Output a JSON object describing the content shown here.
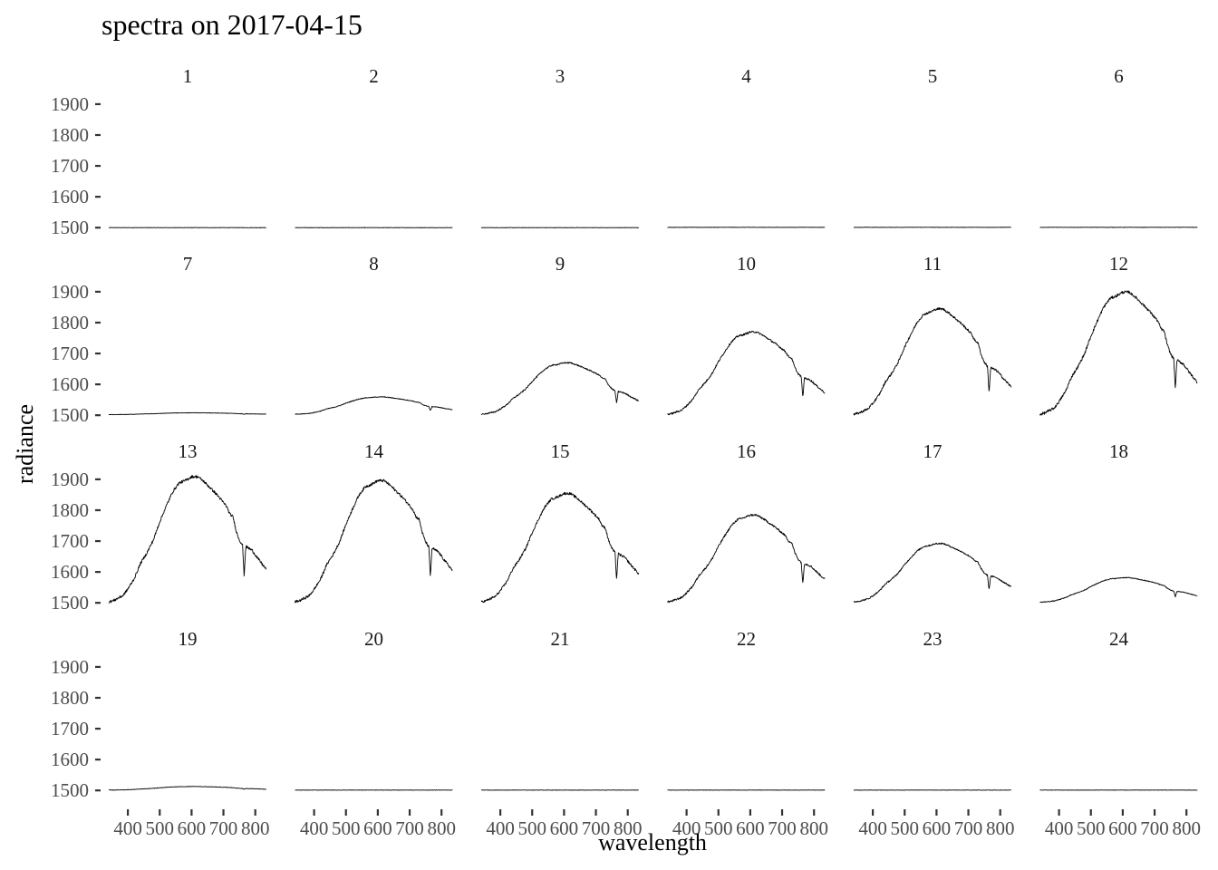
{
  "chart_data": {
    "type": "line",
    "title": "spectra on 2017-04-15",
    "xlabel": "wavelength",
    "ylabel": "radiance",
    "facet_layout": {
      "rows": 4,
      "cols": 6
    },
    "xlim": [
      340,
      835
    ],
    "ylim": [
      1480,
      1935
    ],
    "x_ticks": [
      400,
      500,
      600,
      700,
      800
    ],
    "y_ticks": [
      1500,
      1600,
      1700,
      1800,
      1900
    ],
    "grid": false,
    "legend": "none",
    "spectrum_shape": {
      "x": [
        340,
        355,
        370,
        385,
        400,
        420,
        440,
        460,
        480,
        500,
        520,
        540,
        560,
        580,
        600,
        620,
        640,
        660,
        680,
        690,
        700,
        710,
        720,
        730,
        740,
        750,
        755,
        760,
        765,
        770,
        790,
        810,
        835
      ],
      "shape": [
        0.0,
        0.01,
        0.03,
        0.05,
        0.1,
        0.18,
        0.3,
        0.38,
        0.48,
        0.62,
        0.74,
        0.85,
        0.92,
        0.94,
        0.97,
        0.97,
        0.93,
        0.88,
        0.83,
        0.8,
        0.77,
        0.74,
        0.68,
        0.66,
        0.55,
        0.48,
        0.46,
        0.44,
        0.2,
        0.43,
        0.4,
        0.33,
        0.25
      ]
    },
    "series": [
      {
        "name": "1",
        "baseline": 1500,
        "peak": 0
      },
      {
        "name": "2",
        "baseline": 1500,
        "peak": 0
      },
      {
        "name": "3",
        "baseline": 1500,
        "peak": 0
      },
      {
        "name": "4",
        "baseline": 1501,
        "peak": 0
      },
      {
        "name": "5",
        "baseline": 1501,
        "peak": 0
      },
      {
        "name": "6",
        "baseline": 1501,
        "peak": 0
      },
      {
        "name": "7",
        "baseline": 1502,
        "peak": 6
      },
      {
        "name": "8",
        "baseline": 1503,
        "peak": 58
      },
      {
        "name": "9",
        "baseline": 1503,
        "peak": 172
      },
      {
        "name": "10",
        "baseline": 1503,
        "peak": 275
      },
      {
        "name": "11",
        "baseline": 1503,
        "peak": 352
      },
      {
        "name": "12",
        "baseline": 1503,
        "peak": 408
      },
      {
        "name": "13",
        "baseline": 1503,
        "peak": 418
      },
      {
        "name": "14",
        "baseline": 1503,
        "peak": 405
      },
      {
        "name": "15",
        "baseline": 1503,
        "peak": 362
      },
      {
        "name": "16",
        "baseline": 1503,
        "peak": 290
      },
      {
        "name": "17",
        "baseline": 1503,
        "peak": 195
      },
      {
        "name": "18",
        "baseline": 1502,
        "peak": 82
      },
      {
        "name": "19",
        "baseline": 1501,
        "peak": 12
      },
      {
        "name": "20",
        "baseline": 1501,
        "peak": 0
      },
      {
        "name": "21",
        "baseline": 1501,
        "peak": 0
      },
      {
        "name": "22",
        "baseline": 1501,
        "peak": 0
      },
      {
        "name": "23",
        "baseline": 1501,
        "peak": 0
      },
      {
        "name": "24",
        "baseline": 1501,
        "peak": 0
      }
    ]
  }
}
